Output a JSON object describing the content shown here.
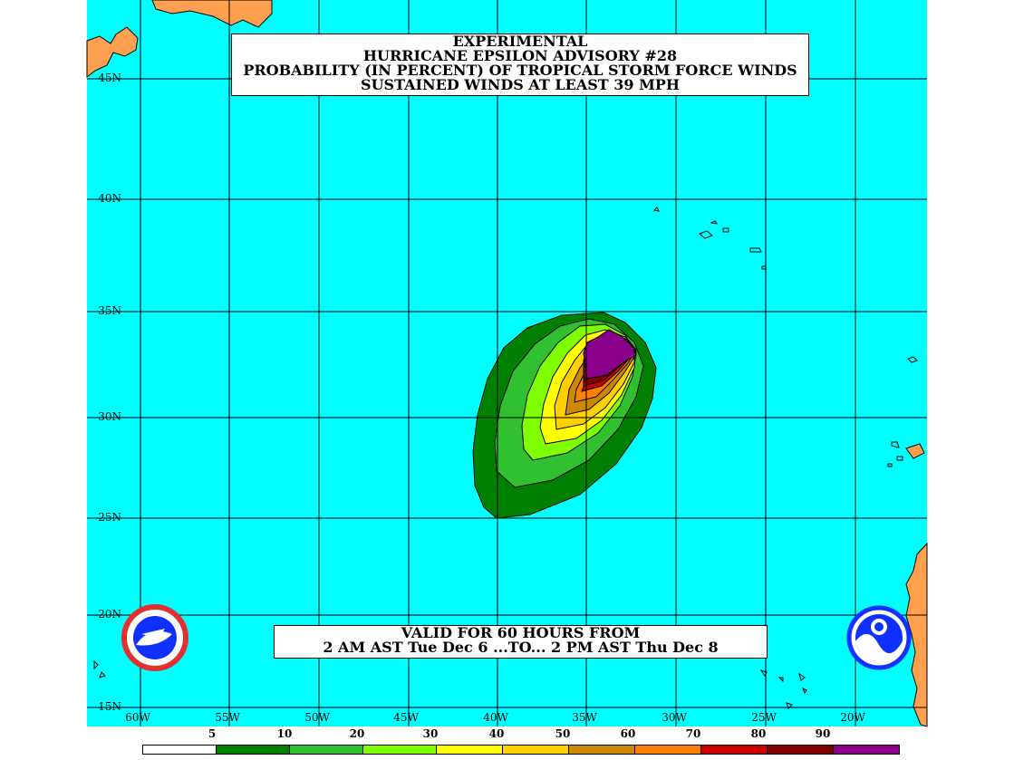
{
  "title": {
    "lines": [
      "EXPERIMENTAL",
      "HURRICANE EPSILON ADVISORY #28",
      "PROBABILITY (IN PERCENT) OF TROPICAL STORM FORCE WINDS",
      "SUSTAINED WINDS AT LEAST 39 MPH"
    ]
  },
  "valid": {
    "line1": "VALID FOR 60 HOURS FROM",
    "line2": "2 AM AST Tue Dec 6 ...TO... 2 PM AST Thu Dec 8"
  },
  "latitude_labels": [
    "45N",
    "40N",
    "35N",
    "30N",
    "25N",
    "20N",
    "15N"
  ],
  "longitude_labels": [
    "60W",
    "55W",
    "50W",
    "45W",
    "40W",
    "35W",
    "30W",
    "25W",
    "20W"
  ],
  "legend": {
    "tick_labels": [
      "5",
      "10",
      "20",
      "30",
      "40",
      "50",
      "60",
      "70",
      "80",
      "90"
    ],
    "colors": [
      "#ffffff",
      "#008000",
      "#30c030",
      "#7fff00",
      "#ffff00",
      "#ffd000",
      "#cc8800",
      "#ff8000",
      "#cc0000",
      "#800000",
      "#8b008b"
    ]
  },
  "colors": {
    "ocean": "#00ffff",
    "land": "#ffa050",
    "grid": "#000000"
  },
  "icons": [
    "nws-logo-icon",
    "noaa-logo-icon"
  ]
}
